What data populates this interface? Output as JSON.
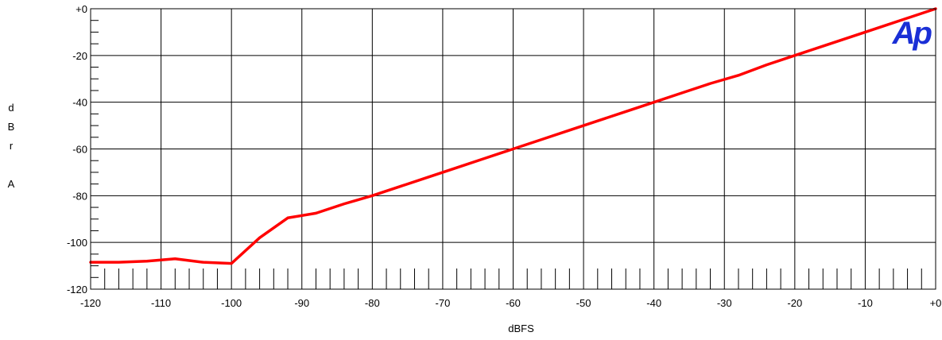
{
  "chart_data": {
    "type": "line",
    "title": "",
    "xlabel": "dBFS",
    "ylabel_chars": [
      "d",
      "B",
      "r",
      "",
      "A"
    ],
    "xlim": [
      -120,
      0
    ],
    "ylim": [
      -120,
      0
    ],
    "x_ticks": [
      -120,
      -110,
      -100,
      -90,
      -80,
      -70,
      -60,
      -50,
      -40,
      -30,
      -20,
      -10,
      0
    ],
    "x_tick_labels": [
      "-120",
      "-110",
      "-100",
      "-90",
      "-80",
      "-70",
      "-60",
      "-50",
      "-40",
      "-30",
      "-20",
      "-10",
      "+0"
    ],
    "y_ticks": [
      0,
      -20,
      -40,
      -60,
      -80,
      -100,
      -120
    ],
    "y_tick_labels": [
      "+0",
      "-20",
      "-40",
      "-60",
      "-80",
      "-100",
      "-120"
    ],
    "grid": true,
    "series": [
      {
        "color": "#ff0000",
        "x": [
          -120,
          -116,
          -112,
          -108,
          -104,
          -100,
          -96,
          -92,
          -88,
          -84,
          -80,
          -76,
          -72,
          -68,
          -64,
          -60,
          -56,
          -52,
          -48,
          -44,
          -40,
          -36,
          -32,
          -28,
          -24,
          -20,
          -16,
          -12,
          -8,
          -4,
          0
        ],
        "y": [
          -108.5,
          -108.5,
          -108,
          -107,
          -108.5,
          -109,
          -98,
          -89.5,
          -87.5,
          -83.5,
          -80,
          -76,
          -72,
          -68,
          -64,
          -60,
          -56,
          -52,
          -48,
          -44,
          -40,
          -36,
          -32,
          -28.5,
          -24,
          -20,
          -16,
          -12,
          -8,
          -4,
          0
        ]
      }
    ],
    "logo_text": "Ap",
    "logo_color": "#1a2fd6"
  }
}
